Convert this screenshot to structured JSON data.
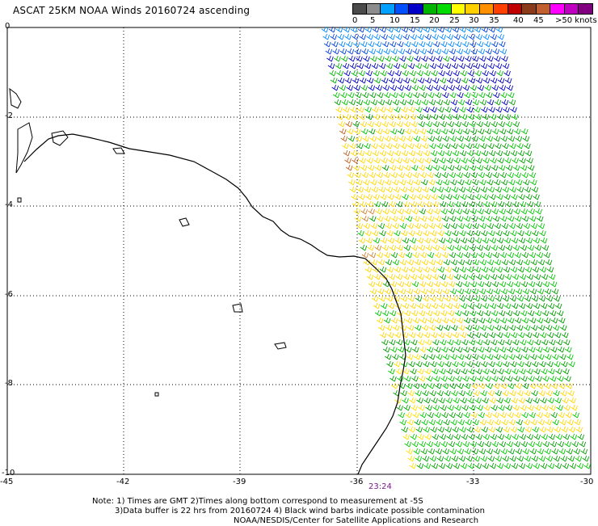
{
  "header": {
    "title": "ASCAT 25KM NOAA Winds 20160724 ascending"
  },
  "legend": {
    "colors": [
      "#4a4a4a",
      "#8c8c8c",
      "#00a0ff",
      "#0050ff",
      "#0000c8",
      "#00b400",
      "#00dc00",
      "#ffff00",
      "#ffd000",
      "#ff9000",
      "#ff4000",
      "#c00000",
      "#8b3a1a",
      "#c06030",
      "#ff00ff",
      "#c000c0",
      "#800080"
    ],
    "labels": [
      "0",
      "5",
      "10",
      "15",
      "20",
      "25",
      "30",
      "35",
      "40",
      "45",
      ">50 knots"
    ]
  },
  "axes": {
    "x_ticks": [
      "-45",
      "-42",
      "-39",
      "-36",
      "-33",
      "-30"
    ],
    "y_ticks": [
      "0",
      "-2",
      "-4",
      "-6",
      "-8",
      "-10"
    ]
  },
  "swath": {
    "time_label": "23:24"
  },
  "notes": {
    "line1": "Note: 1) Times are GMT 2)Times along bottom correspond to measurement at -5S",
    "line2": "3)Data buffer is 22 hrs from 20160724 4) Black wind barbs indicate possible contamination",
    "line3": "NOAA/NESDIS/Center for Satellite Applications and Research"
  }
}
